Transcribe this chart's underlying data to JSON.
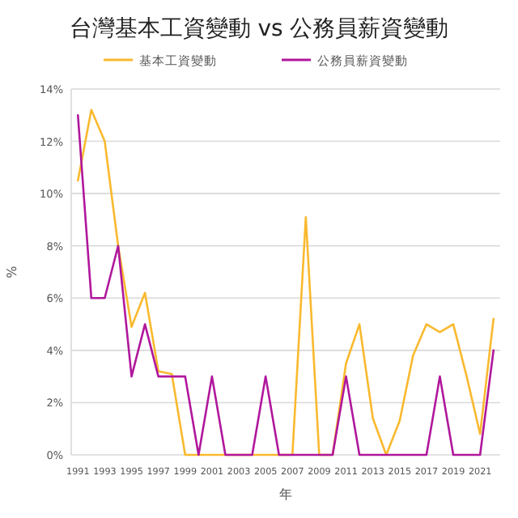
{
  "chart_data": {
    "type": "line",
    "title": "台灣基本工資變動 vs 公務員薪資變動",
    "xlabel": "年",
    "ylabel": "%",
    "categories": [
      "1991",
      null,
      "1993",
      null,
      "1995",
      null,
      "1997",
      null,
      "1999",
      null,
      "2001",
      null,
      "2003",
      null,
      "2005",
      null,
      "2007",
      null,
      "2009",
      null,
      "2011",
      null,
      "2013",
      null,
      "2015",
      null,
      "2017",
      null,
      "2019",
      null,
      "2021",
      null
    ],
    "series": [
      {
        "name": "基本工資變動",
        "color": "#f9b92e",
        "values": [
          10.5,
          13.2,
          12.0,
          8.0,
          4.9,
          6.2,
          3.2,
          3.1,
          0,
          0,
          0,
          0,
          0,
          0,
          0,
          0,
          0,
          9.1,
          0,
          0,
          3.5,
          5.0,
          1.4,
          0,
          1.3,
          3.8,
          5.0,
          4.7,
          5.0,
          3.0,
          0.8,
          5.2
        ]
      },
      {
        "name": "公務員薪資變動",
        "color": "#b0179c",
        "values": [
          13,
          6,
          6,
          8,
          3,
          5,
          3,
          3,
          3,
          0,
          3,
          0,
          0,
          0,
          3,
          0,
          0,
          0,
          0,
          0,
          3,
          0,
          0,
          0,
          0,
          0,
          0,
          3,
          0,
          0,
          0,
          4
        ]
      }
    ],
    "ylim": [
      0,
      14
    ],
    "yticks": [
      {
        "value": 0,
        "label": "0%"
      },
      {
        "value": 2,
        "label": "2%"
      },
      {
        "value": 4,
        "label": "4%"
      },
      {
        "value": 6,
        "label": "6%"
      },
      {
        "value": 8,
        "label": "8%"
      },
      {
        "value": 10,
        "label": "10%"
      },
      {
        "value": 12,
        "label": "12%"
      },
      {
        "value": 14,
        "label": "14%"
      }
    ],
    "grid": "y",
    "legend": "top",
    "marker": "none",
    "line_style": "solid"
  }
}
